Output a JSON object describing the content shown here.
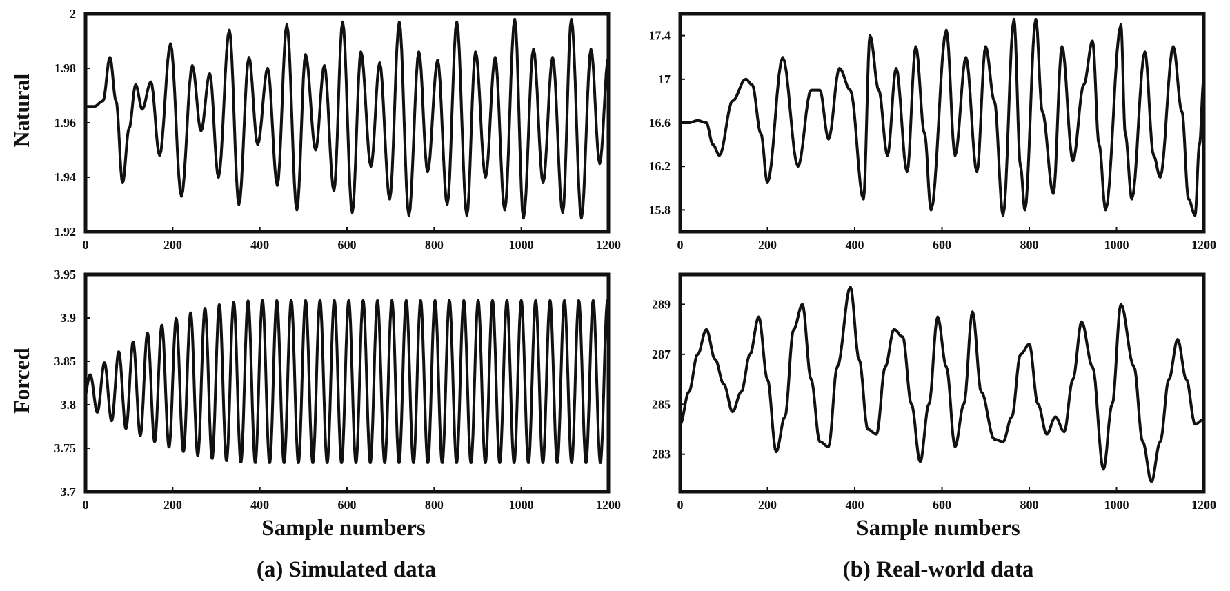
{
  "row_labels": [
    "Natural",
    "Forced"
  ],
  "xlabel": "Sample numbers",
  "captions": [
    "(a) Simulated data",
    "(b) Real-world data"
  ],
  "chart_data": [
    {
      "type": "line",
      "panel": "simulated-natural",
      "xlim": [
        0,
        1200
      ],
      "ylim": [
        1.92,
        2.0
      ],
      "xticks": [
        "0",
        "200",
        "400",
        "600",
        "800",
        "1000",
        "1200"
      ],
      "yticks": [
        "1.92",
        "1.94",
        "1.96",
        "1.98",
        "2"
      ],
      "x": [
        0,
        20,
        40,
        56,
        70,
        85,
        100,
        115,
        130,
        150,
        170,
        195,
        220,
        245,
        265,
        285,
        305,
        330,
        352,
        375,
        395,
        418,
        440,
        462,
        485,
        505,
        528,
        548,
        570,
        590,
        612,
        632,
        655,
        675,
        698,
        720,
        742,
        765,
        785,
        808,
        830,
        852,
        875,
        895,
        918,
        940,
        962,
        985,
        1005,
        1028,
        1050,
        1072,
        1095,
        1115,
        1138,
        1160,
        1180,
        1200
      ],
      "y": [
        1.966,
        1.966,
        1.968,
        1.984,
        1.968,
        1.938,
        1.958,
        1.974,
        1.965,
        1.975,
        1.948,
        1.989,
        1.933,
        1.981,
        1.957,
        1.978,
        1.94,
        1.994,
        1.93,
        1.984,
        1.952,
        1.98,
        1.937,
        1.996,
        1.928,
        1.985,
        1.95,
        1.981,
        1.935,
        1.997,
        1.927,
        1.986,
        1.944,
        1.982,
        1.932,
        1.997,
        1.926,
        1.986,
        1.942,
        1.983,
        1.93,
        1.997,
        1.926,
        1.986,
        1.94,
        1.984,
        1.928,
        1.998,
        1.925,
        1.987,
        1.938,
        1.984,
        1.927,
        1.998,
        1.925,
        1.987,
        1.945,
        1.984
      ]
    },
    {
      "type": "line",
      "panel": "real-natural",
      "xlim": [
        0,
        1200
      ],
      "ylim": [
        15.6,
        17.6
      ],
      "xticks": [
        "0",
        "200",
        "400",
        "600",
        "800",
        "1000",
        "1200"
      ],
      "yticks": [
        "15.8",
        "16.2",
        "16.6",
        "17",
        "17.4"
      ],
      "x": [
        0,
        20,
        40,
        60,
        75,
        90,
        120,
        150,
        165,
        185,
        200,
        235,
        270,
        300,
        320,
        340,
        365,
        390,
        420,
        435,
        455,
        475,
        495,
        520,
        540,
        560,
        575,
        610,
        630,
        655,
        680,
        700,
        720,
        740,
        765,
        780,
        790,
        815,
        830,
        855,
        875,
        900,
        925,
        945,
        960,
        975,
        1010,
        1020,
        1035,
        1065,
        1085,
        1100,
        1130,
        1150,
        1165,
        1180,
        1190,
        1200
      ],
      "y": [
        16.6,
        16.6,
        16.62,
        16.6,
        16.4,
        16.3,
        16.8,
        17.0,
        16.95,
        16.5,
        16.05,
        17.2,
        16.2,
        16.9,
        16.9,
        16.45,
        17.1,
        16.9,
        15.9,
        17.4,
        16.9,
        16.3,
        17.1,
        16.15,
        17.3,
        16.5,
        15.8,
        17.45,
        16.3,
        17.2,
        16.15,
        17.3,
        16.8,
        15.75,
        17.55,
        16.2,
        15.8,
        17.55,
        16.7,
        15.95,
        17.3,
        16.25,
        16.95,
        17.35,
        16.4,
        15.8,
        17.5,
        16.5,
        15.9,
        17.25,
        16.3,
        16.1,
        17.3,
        16.7,
        15.9,
        15.75,
        16.4,
        17.0
      ]
    },
    {
      "type": "line",
      "panel": "simulated-forced",
      "xlim": [
        0,
        1200
      ],
      "ylim": [
        3.7,
        3.95
      ],
      "xticks": [
        "0",
        "200",
        "400",
        "600",
        "800",
        "1000",
        "1200"
      ],
      "yticks": [
        "3.7",
        "3.75",
        "3.8",
        "3.85",
        "3.9",
        "3.95"
      ],
      "x": [
        0,
        1200
      ],
      "y": [
        3.82,
        3.92
      ],
      "period": 33,
      "amplitude_envelope": {
        "start": [
          3.8,
          3.83
        ],
        "end": [
          3.733,
          3.92
        ]
      }
    },
    {
      "type": "line",
      "panel": "real-forced",
      "xlim": [
        0,
        1200
      ],
      "ylim": [
        281.5,
        290.2
      ],
      "xticks": [
        "0",
        "200",
        "400",
        "600",
        "800",
        "1000",
        "1200"
      ],
      "yticks": [
        "283",
        "285",
        "287",
        "289"
      ],
      "x": [
        0,
        20,
        40,
        60,
        80,
        100,
        120,
        140,
        160,
        180,
        200,
        220,
        240,
        260,
        280,
        300,
        320,
        340,
        360,
        390,
        410,
        430,
        450,
        470,
        490,
        510,
        530,
        550,
        570,
        590,
        610,
        630,
        650,
        670,
        690,
        720,
        740,
        760,
        780,
        800,
        820,
        840,
        860,
        880,
        900,
        920,
        945,
        970,
        990,
        1010,
        1040,
        1060,
        1080,
        1100,
        1120,
        1140,
        1160,
        1180,
        1200
      ],
      "y": [
        284.2,
        285.5,
        287,
        288,
        286.8,
        285.8,
        284.7,
        285.5,
        287,
        288.5,
        286,
        283.1,
        284.5,
        288,
        289,
        286,
        283.5,
        283.3,
        286.5,
        289.7,
        286.8,
        284,
        283.8,
        286.5,
        288,
        287.7,
        285,
        282.7,
        285,
        288.5,
        286.5,
        283.3,
        285,
        288.7,
        285.5,
        283.6,
        283.5,
        284.5,
        287,
        287.4,
        285,
        283.8,
        284.5,
        283.9,
        286,
        288.3,
        286.5,
        282.4,
        285,
        289,
        286.5,
        283.5,
        281.9,
        283.5,
        286,
        287.6,
        286,
        284.2,
        284.4
      ]
    }
  ]
}
